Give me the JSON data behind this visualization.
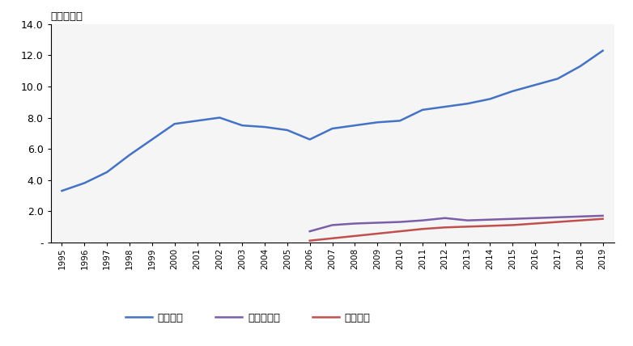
{
  "years": [
    1995,
    1996,
    1997,
    1998,
    1999,
    2000,
    2001,
    2002,
    2003,
    2004,
    2005,
    2006,
    2007,
    2008,
    2009,
    2010,
    2011,
    2012,
    2013,
    2014,
    2015,
    2016,
    2017,
    2018,
    2019
  ],
  "brokerage": [
    3.3,
    3.8,
    4.5,
    5.6,
    6.6,
    7.6,
    7.8,
    8.0,
    7.5,
    7.4,
    7.2,
    6.6,
    7.3,
    7.5,
    7.7,
    7.8,
    8.5,
    8.7,
    8.9,
    9.2,
    9.7,
    10.1,
    10.5,
    11.3,
    12.3
  ],
  "retirement": [
    null,
    null,
    null,
    null,
    null,
    null,
    null,
    null,
    null,
    null,
    null,
    0.7,
    1.1,
    1.2,
    1.25,
    1.3,
    1.4,
    1.55,
    1.4,
    1.45,
    1.5,
    1.55,
    1.6,
    1.65,
    1.7
  ],
  "bank": [
    null,
    null,
    null,
    null,
    null,
    null,
    null,
    null,
    null,
    null,
    null,
    0.1,
    0.25,
    0.4,
    0.55,
    0.7,
    0.85,
    0.95,
    1.0,
    1.05,
    1.1,
    1.2,
    1.3,
    1.4,
    1.5
  ],
  "brokerage_color": "#4472C4",
  "retirement_color": "#7B5EA7",
  "bank_color": "#C0504D",
  "ylim": [
    0,
    14.0
  ],
  "yticks": [
    0,
    2.0,
    4.0,
    6.0,
    8.0,
    10.0,
    12.0,
    14.0
  ],
  "ytick_labels": [
    "-",
    "2.0",
    "4.0",
    "6.0",
    "8.0",
    "10.0",
    "12.0",
    "14.0"
  ],
  "ylabel_text": "（百万个）",
  "legend_labels": [
    "经纪账户",
    "退休金账户",
    "銀行账户"
  ],
  "background_color": "#ffffff",
  "plot_bg_color": "#f5f5f5",
  "line_width": 1.8,
  "figsize": [
    7.82,
    4.28
  ],
  "dpi": 100
}
